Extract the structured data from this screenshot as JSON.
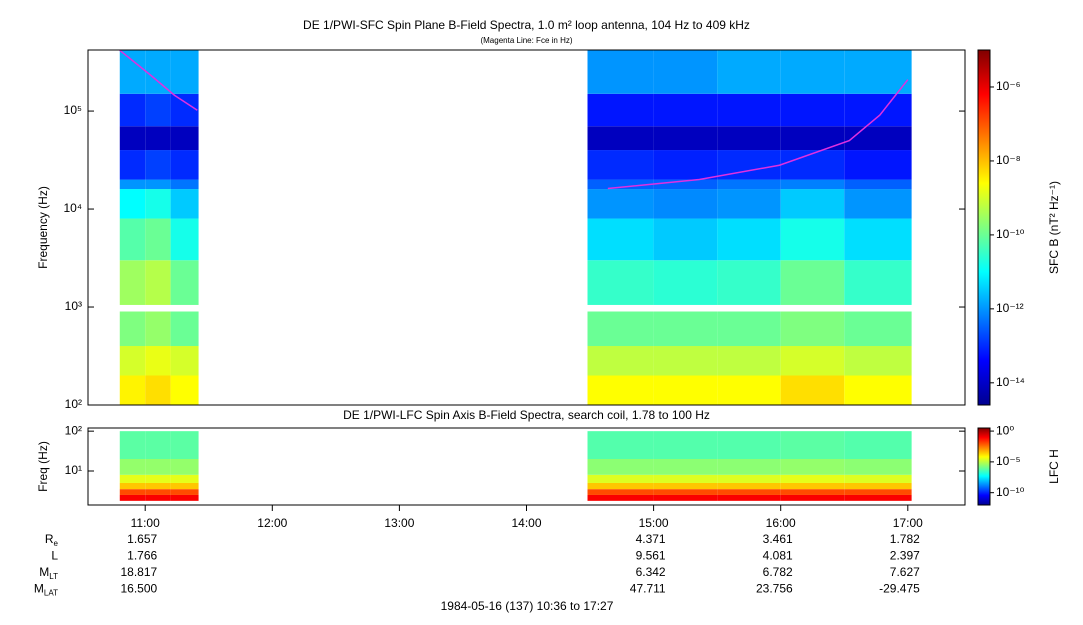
{
  "chart_data": [
    {
      "type": "heatmap",
      "title": "DE 1/PWI-SFC  Spin Plane B-Field Spectra, 1.0 m² loop antenna, 104 Hz to 409 kHz",
      "subtitle": "(Magenta Line: Fce in Hz)",
      "ylabel": "Frequency (Hz)",
      "xlim": [
        10.55,
        17.45
      ],
      "ylim": [
        100,
        420000
      ],
      "log_y": true,
      "yticks": [
        {
          "value": 100,
          "label": "10²"
        },
        {
          "value": 1000,
          "label": "10³"
        },
        {
          "value": 10000,
          "label": "10⁴"
        },
        {
          "value": 100000,
          "label": "10⁵"
        }
      ],
      "xbins": [
        10.8,
        11.0,
        11.2,
        11.42,
        14.48,
        15.0,
        15.5,
        16.0,
        16.5,
        17.03
      ],
      "ybins": [
        100,
        200,
        400,
        900,
        1050,
        3000,
        8000,
        16000,
        20000,
        40000,
        70000,
        150000,
        420000
      ],
      "z": [
        [
          -8.5,
          -8.3,
          -8.6,
          null,
          -8.6,
          -8.6,
          -8.6,
          -8.3,
          -8.6
        ],
        [
          -9,
          -8.8,
          -9,
          null,
          -9.2,
          -9.2,
          -9.2,
          -9,
          -9.2
        ],
        [
          -9.8,
          -9.6,
          -10,
          null,
          -10,
          -10,
          -10,
          -9.8,
          -10
        ],
        [
          null,
          null,
          null,
          null,
          null,
          null,
          null,
          null,
          null
        ],
        [
          -9.5,
          -9.3,
          -10,
          null,
          -10.5,
          -10.6,
          -10.5,
          -10,
          -10.5
        ],
        [
          -10.2,
          -10,
          -10.8,
          null,
          -11.3,
          -11.5,
          -11.3,
          -10.8,
          -11.3
        ],
        [
          -11,
          -10.8,
          -11.5,
          null,
          -12,
          -12.1,
          -12,
          -11.5,
          -12
        ],
        [
          -12,
          -12,
          -12.3,
          null,
          -12.5,
          -12.5,
          -12.3,
          -12.2,
          -12.5
        ],
        [
          -13,
          -12.8,
          -13,
          null,
          -13,
          -13.1,
          -13,
          -13,
          -13.2
        ],
        [
          -14,
          -14,
          -14,
          null,
          -14,
          -14,
          -14,
          -14,
          -14
        ],
        [
          -13,
          -12.8,
          -13,
          null,
          -13.2,
          -13.2,
          -13.2,
          -13.2,
          -13.2
        ],
        [
          -11.8,
          -11.8,
          -11.8,
          null,
          -12,
          -12,
          -11.8,
          -11.8,
          -11.8
        ]
      ],
      "clim": [
        -14.6,
        -5
      ],
      "clabel": "SFC B (nT² Hz⁻¹)",
      "cticks": [
        {
          "value": -6,
          "label": "10⁻⁶"
        },
        {
          "value": -8,
          "label": "10⁻⁸"
        },
        {
          "value": -10,
          "label": "10⁻¹⁰"
        },
        {
          "value": -12,
          "label": "10⁻¹²"
        },
        {
          "value": -14,
          "label": "10⁻¹⁴"
        }
      ],
      "line": {
        "color": "#e030e0",
        "x": [
          10.8,
          11.04,
          11.23,
          11.41,
          null,
          14.64,
          15.36,
          15.99,
          16.54,
          16.78,
          17.0
        ],
        "y": [
          417000,
          234000,
          145000,
          102000,
          null,
          16200,
          20000,
          28000,
          50000,
          91000,
          209000
        ]
      }
    },
    {
      "type": "heatmap",
      "title": "DE 1/PWI-LFC  Spin Axis B-Field Spectra, search coil, 1.78 to 100 Hz",
      "ylabel": "Freq (Hz)",
      "xlim": [
        10.55,
        17.45
      ],
      "xticks": [
        {
          "value": 11,
          "label": "11:00"
        },
        {
          "value": 12,
          "label": "12:00"
        },
        {
          "value": 13,
          "label": "13:00"
        },
        {
          "value": 14,
          "label": "14:00"
        },
        {
          "value": 15,
          "label": "15:00"
        },
        {
          "value": 16,
          "label": "16:00"
        },
        {
          "value": 17,
          "label": "17:00"
        }
      ],
      "ylim": [
        1.4,
        120
      ],
      "log_y": true,
      "yticks": [
        {
          "value": 10,
          "label": "10¹"
        },
        {
          "value": 100,
          "label": "10²"
        }
      ],
      "xbins": [
        10.8,
        11.0,
        11.2,
        11.42,
        14.48,
        15.0,
        15.5,
        16.0,
        16.5,
        17.03
      ],
      "ybins": [
        1.78,
        2.5,
        3.5,
        5,
        8,
        20,
        100
      ],
      "z": [
        [
          -1,
          -1,
          -1,
          null,
          -1,
          -1,
          -1,
          -1,
          -1
        ],
        [
          -2,
          -2,
          -2,
          null,
          -2,
          -2,
          -2,
          -2,
          -2
        ],
        [
          -3.5,
          -3.5,
          -3.5,
          null,
          -3.5,
          -3.5,
          -3.5,
          -3.5,
          -3.5
        ],
        [
          -4.5,
          -4.5,
          -4.5,
          null,
          -4.6,
          -4.6,
          -4.6,
          -4.5,
          -4.6
        ],
        [
          -5.5,
          -5.5,
          -5.5,
          null,
          -5.6,
          -5.6,
          -5.6,
          -5.5,
          -5.6
        ],
        [
          -6.2,
          -6.2,
          -6.2,
          null,
          -6.3,
          -6.3,
          -6.3,
          -6.2,
          -6.3
        ]
      ],
      "clim": [
        -12,
        0.5
      ],
      "clabel": "LFC H",
      "cticks": [
        {
          "value": 0,
          "label": "10⁰"
        },
        {
          "value": -5,
          "label": "10⁻⁵"
        },
        {
          "value": -10,
          "label": "10⁻¹⁰"
        }
      ]
    }
  ],
  "ephemeris": [
    {
      "label": "R",
      "sub": "e",
      "values": [
        "1.657",
        null,
        null,
        null,
        "4.371",
        "3.461",
        "1.782"
      ]
    },
    {
      "label": "L",
      "values": [
        "1.766",
        null,
        null,
        null,
        "9.561",
        "4.081",
        "2.397"
      ]
    },
    {
      "label": "M",
      "sub": "LT",
      "values": [
        "18.817",
        null,
        null,
        null,
        "6.342",
        "6.782",
        "7.627"
      ]
    },
    {
      "label": "M",
      "sub": "LAT",
      "values": [
        "16.500",
        null,
        null,
        null,
        "47.711",
        "23.756",
        "-29.475"
      ]
    }
  ],
  "footer": "1984-05-16 (137) 10:36 to 17:27"
}
